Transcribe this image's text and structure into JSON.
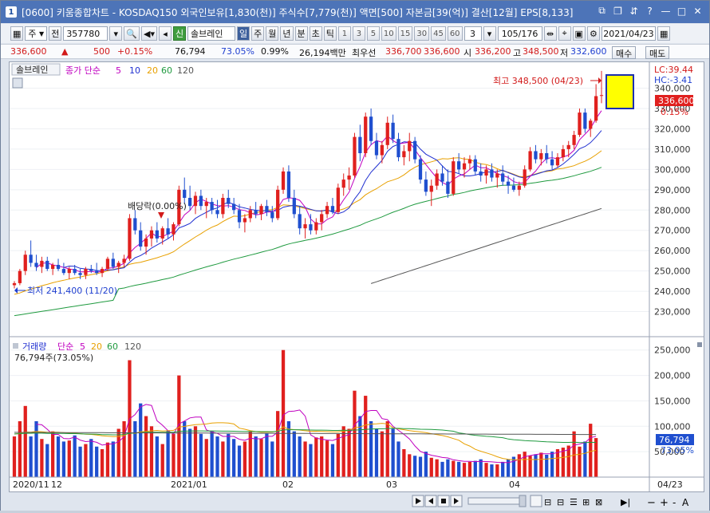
{
  "window": {
    "number": "1",
    "title": "[0600] 키움종합차트 - KOSDAQ150 외국인보유[1,830(천)] 주식수[7,779(천)] 액면[500] 자본금[39(억)] 결산[12월] EPS[8,133]"
  },
  "toolbar": {
    "market": "주",
    "market_arrow": "▼",
    "prefix": "전",
    "code": "357780",
    "name_tag": "신",
    "stock_name": "솔브레인",
    "periods": [
      "일",
      "주",
      "월",
      "년",
      "분",
      "초",
      "틱"
    ],
    "active_period": "일",
    "intervals": [
      "1",
      "3",
      "5",
      "10",
      "15",
      "30",
      "45",
      "60"
    ],
    "count_value": "3",
    "count_range": "105/176",
    "date": "2021/04/23"
  },
  "quote": {
    "price": "336,600",
    "change_arrow": "▲",
    "change": "500",
    "change_pct": "+0.15%",
    "volume": "76,794",
    "volume_pct": "73.05%",
    "turnover": "0.99%",
    "amount": "26,194백만",
    "best_ask_label": "최우선",
    "best_ask": "336,700",
    "best_bid": "336,600",
    "open_label": "시",
    "open": "336,200",
    "high_label": "고",
    "high": "348,500",
    "low_label": "저",
    "low": "332,600",
    "buy_label": "매수",
    "sell_label": "매도"
  },
  "price_panel": {
    "name_tag": "솔브레인",
    "legend_label": "종가 단순",
    "ma_periods": [
      "5",
      "10",
      "20",
      "60",
      "120"
    ],
    "lc_label": "LC:39.44",
    "hc_label": "HC:-3.41",
    "last_price_tag": "336,600",
    "last_pct_tag": "0.15%",
    "high_annotation": "최고 348,500 (04/23)",
    "low_annotation": "최저 241,400 (11/20)",
    "dividend_annotation": "배당락(0.00%)",
    "y_ticks": [
      "340,000",
      "330,000",
      "320,000",
      "310,000",
      "300,000",
      "290,000",
      "280,000",
      "270,000",
      "260,000",
      "250,000",
      "240,000",
      "230,000"
    ]
  },
  "volume_panel": {
    "legend_label": "거래량",
    "legend_type": "단순",
    "ma_periods": [
      "5",
      "20",
      "60",
      "120"
    ],
    "last_value_text": "76,794주(73.05%)",
    "last_tag": "76,794",
    "last_pct_tag": "73.05%",
    "y_ticks": [
      "250,000",
      "200,000",
      "150,000",
      "100,000",
      "50,000"
    ]
  },
  "x_axis_labels": [
    "2020/11",
    "12",
    "2021/01",
    "02",
    "03",
    "04",
    "04/23"
  ],
  "chart_data": [
    {
      "type": "candlestick",
      "title": "솔브레인",
      "ylim": [
        220000,
        352000
      ],
      "unit": "원",
      "candles_ohlc": [
        [
          243000,
          245000,
          241400,
          244000
        ],
        [
          244000,
          251000,
          243000,
          250000
        ],
        [
          250000,
          260000,
          248000,
          258000
        ],
        [
          258000,
          265000,
          252000,
          254000
        ],
        [
          254000,
          258000,
          250000,
          252000
        ],
        [
          252000,
          257000,
          249000,
          255000
        ],
        [
          255000,
          257000,
          250000,
          251000
        ],
        [
          251000,
          254000,
          248000,
          253000
        ],
        [
          253000,
          256000,
          250000,
          251000
        ],
        [
          251000,
          254000,
          248000,
          249000
        ],
        [
          249000,
          252000,
          246000,
          251000
        ],
        [
          251000,
          253000,
          248000,
          249000
        ],
        [
          249000,
          251000,
          246000,
          248000
        ],
        [
          248000,
          252000,
          246000,
          251000
        ],
        [
          251000,
          253000,
          249000,
          250000
        ],
        [
          250000,
          254000,
          248000,
          249000
        ],
        [
          249000,
          252000,
          247000,
          251000
        ],
        [
          251000,
          257000,
          250000,
          256000
        ],
        [
          256000,
          259000,
          251000,
          252000
        ],
        [
          252000,
          255000,
          249000,
          254000
        ],
        [
          254000,
          258000,
          252000,
          256000
        ],
        [
          256000,
          278000,
          255000,
          276000
        ],
        [
          276000,
          280000,
          268000,
          270000
        ],
        [
          270000,
          274000,
          260000,
          262000
        ],
        [
          262000,
          268000,
          258000,
          266000
        ],
        [
          266000,
          272000,
          262000,
          270000
        ],
        [
          270000,
          274000,
          264000,
          266000
        ],
        [
          266000,
          272000,
          263000,
          271000
        ],
        [
          271000,
          276000,
          266000,
          268000
        ],
        [
          268000,
          274000,
          265000,
          273000
        ],
        [
          273000,
          292000,
          272000,
          290000
        ],
        [
          290000,
          296000,
          283000,
          286000
        ],
        [
          286000,
          292000,
          280000,
          282000
        ],
        [
          282000,
          289000,
          278000,
          287000
        ],
        [
          287000,
          290000,
          280000,
          282000
        ],
        [
          282000,
          286000,
          276000,
          284000
        ],
        [
          284000,
          286000,
          278000,
          280000
        ],
        [
          280000,
          285000,
          276000,
          278000
        ],
        [
          278000,
          288000,
          276000,
          286000
        ],
        [
          286000,
          290000,
          281000,
          283000
        ],
        [
          283000,
          286000,
          278000,
          280000
        ],
        [
          280000,
          283000,
          271000,
          274000
        ],
        [
          274000,
          278000,
          269000,
          276000
        ],
        [
          276000,
          282000,
          274000,
          280000
        ],
        [
          280000,
          284000,
          276000,
          278000
        ],
        [
          278000,
          283000,
          275000,
          282000
        ],
        [
          282000,
          285000,
          277000,
          279000
        ],
        [
          279000,
          282000,
          274000,
          276000
        ],
        [
          276000,
          292000,
          275000,
          290000
        ],
        [
          290000,
          301000,
          288000,
          299000
        ],
        [
          299000,
          302000,
          284000,
          286000
        ],
        [
          286000,
          290000,
          276000,
          278000
        ],
        [
          278000,
          282000,
          268000,
          271000
        ],
        [
          271000,
          276000,
          266000,
          273000
        ],
        [
          273000,
          278000,
          268000,
          270000
        ],
        [
          270000,
          276000,
          268000,
          274000
        ],
        [
          274000,
          280000,
          270000,
          278000
        ],
        [
          278000,
          284000,
          276000,
          282000
        ],
        [
          282000,
          286000,
          278000,
          279000
        ],
        [
          279000,
          293000,
          278000,
          291000
        ],
        [
          291000,
          298000,
          287000,
          295000
        ],
        [
          295000,
          301000,
          290000,
          297000
        ],
        [
          297000,
          318000,
          296000,
          316000
        ],
        [
          316000,
          322000,
          304000,
          308000
        ],
        [
          308000,
          328000,
          306000,
          326000
        ],
        [
          326000,
          330000,
          312000,
          314000
        ],
        [
          314000,
          318000,
          305000,
          307000
        ],
        [
          307000,
          314000,
          303000,
          312000
        ],
        [
          312000,
          326000,
          310000,
          323000
        ],
        [
          323000,
          327000,
          313000,
          315000
        ],
        [
          315000,
          318000,
          304000,
          306000
        ],
        [
          306000,
          312000,
          302000,
          309000
        ],
        [
          309000,
          318000,
          304000,
          314000
        ],
        [
          314000,
          316000,
          303000,
          305000
        ],
        [
          305000,
          307000,
          293000,
          295000
        ],
        [
          295000,
          299000,
          287000,
          289000
        ],
        [
          289000,
          295000,
          282000,
          292000
        ],
        [
          292000,
          300000,
          290000,
          298000
        ],
        [
          298000,
          302000,
          292000,
          294000
        ],
        [
          294000,
          300000,
          286000,
          288000
        ],
        [
          288000,
          306000,
          287000,
          304000
        ],
        [
          304000,
          308000,
          298000,
          300000
        ],
        [
          300000,
          306000,
          296000,
          303000
        ],
        [
          303000,
          307000,
          300000,
          305000
        ],
        [
          305000,
          307000,
          297000,
          299000
        ],
        [
          299000,
          303000,
          294000,
          297000
        ],
        [
          297000,
          302000,
          293000,
          300000
        ],
        [
          300000,
          303000,
          294000,
          296000
        ],
        [
          296000,
          300000,
          291000,
          298000
        ],
        [
          298000,
          302000,
          292000,
          294000
        ],
        [
          294000,
          297000,
          288000,
          292000
        ],
        [
          292000,
          296000,
          289000,
          290000
        ],
        [
          290000,
          294000,
          287000,
          292000
        ],
        [
          292000,
          302000,
          291000,
          300000
        ],
        [
          300000,
          311000,
          299000,
          309000
        ],
        [
          309000,
          312000,
          303000,
          305000
        ],
        [
          305000,
          310000,
          302000,
          308000
        ],
        [
          308000,
          312000,
          303000,
          305000
        ],
        [
          305000,
          309000,
          300000,
          302000
        ],
        [
          302000,
          308000,
          301000,
          306000
        ],
        [
          306000,
          312000,
          304000,
          310000
        ],
        [
          310000,
          314000,
          306000,
          312000
        ],
        [
          312000,
          319000,
          310000,
          317000
        ],
        [
          317000,
          330000,
          316000,
          328000
        ],
        [
          328000,
          330000,
          318000,
          320000
        ],
        [
          320000,
          325000,
          316000,
          324000
        ],
        [
          324000,
          342000,
          323000,
          336100
        ],
        [
          336200,
          348500,
          332600,
          336600
        ]
      ],
      "ma": [
        {
          "name": "5",
          "color": "#c000c0"
        },
        {
          "name": "10",
          "color": "#1f2fd0"
        },
        {
          "name": "20",
          "color": "#e8a000"
        },
        {
          "name": "60",
          "color": "#1f9a3f"
        },
        {
          "name": "120",
          "color": "#555555"
        }
      ]
    },
    {
      "type": "bar",
      "title": "거래량",
      "ylim": [
        0,
        270000
      ],
      "values": [
        80000,
        110000,
        140000,
        80000,
        110000,
        75000,
        65000,
        90000,
        80000,
        70000,
        72000,
        82000,
        60000,
        65000,
        75000,
        60000,
        55000,
        68000,
        70000,
        95000,
        110000,
        230000,
        110000,
        145000,
        120000,
        100000,
        80000,
        65000,
        92000,
        85000,
        200000,
        110000,
        95000,
        100000,
        85000,
        75000,
        90000,
        80000,
        70000,
        85000,
        75000,
        62000,
        70000,
        90000,
        80000,
        75000,
        86000,
        70000,
        130000,
        250000,
        110000,
        90000,
        80000,
        70000,
        65000,
        78000,
        80000,
        72000,
        65000,
        85000,
        100000,
        95000,
        170000,
        120000,
        160000,
        110000,
        95000,
        90000,
        110000,
        95000,
        70000,
        55000,
        45000,
        42000,
        40000,
        50000,
        38000,
        35000,
        30000,
        35000,
        32000,
        30000,
        28000,
        30000,
        32000,
        35000,
        28000,
        25000,
        25000,
        30000,
        35000,
        40000,
        45000,
        50000,
        42000,
        45000,
        48000,
        44000,
        50000,
        55000,
        58000,
        62000,
        90000,
        60000,
        70000,
        105000,
        76794
      ],
      "ma": [
        {
          "name": "5",
          "color": "#c000c0"
        },
        {
          "name": "20",
          "color": "#e8a000"
        },
        {
          "name": "60",
          "color": "#1f9a3f"
        },
        {
          "name": "120",
          "color": "#555555"
        }
      ]
    }
  ],
  "colors": {
    "up": "#e0201e",
    "down": "#1f4fcf",
    "yellow_box": "#ffff00"
  }
}
